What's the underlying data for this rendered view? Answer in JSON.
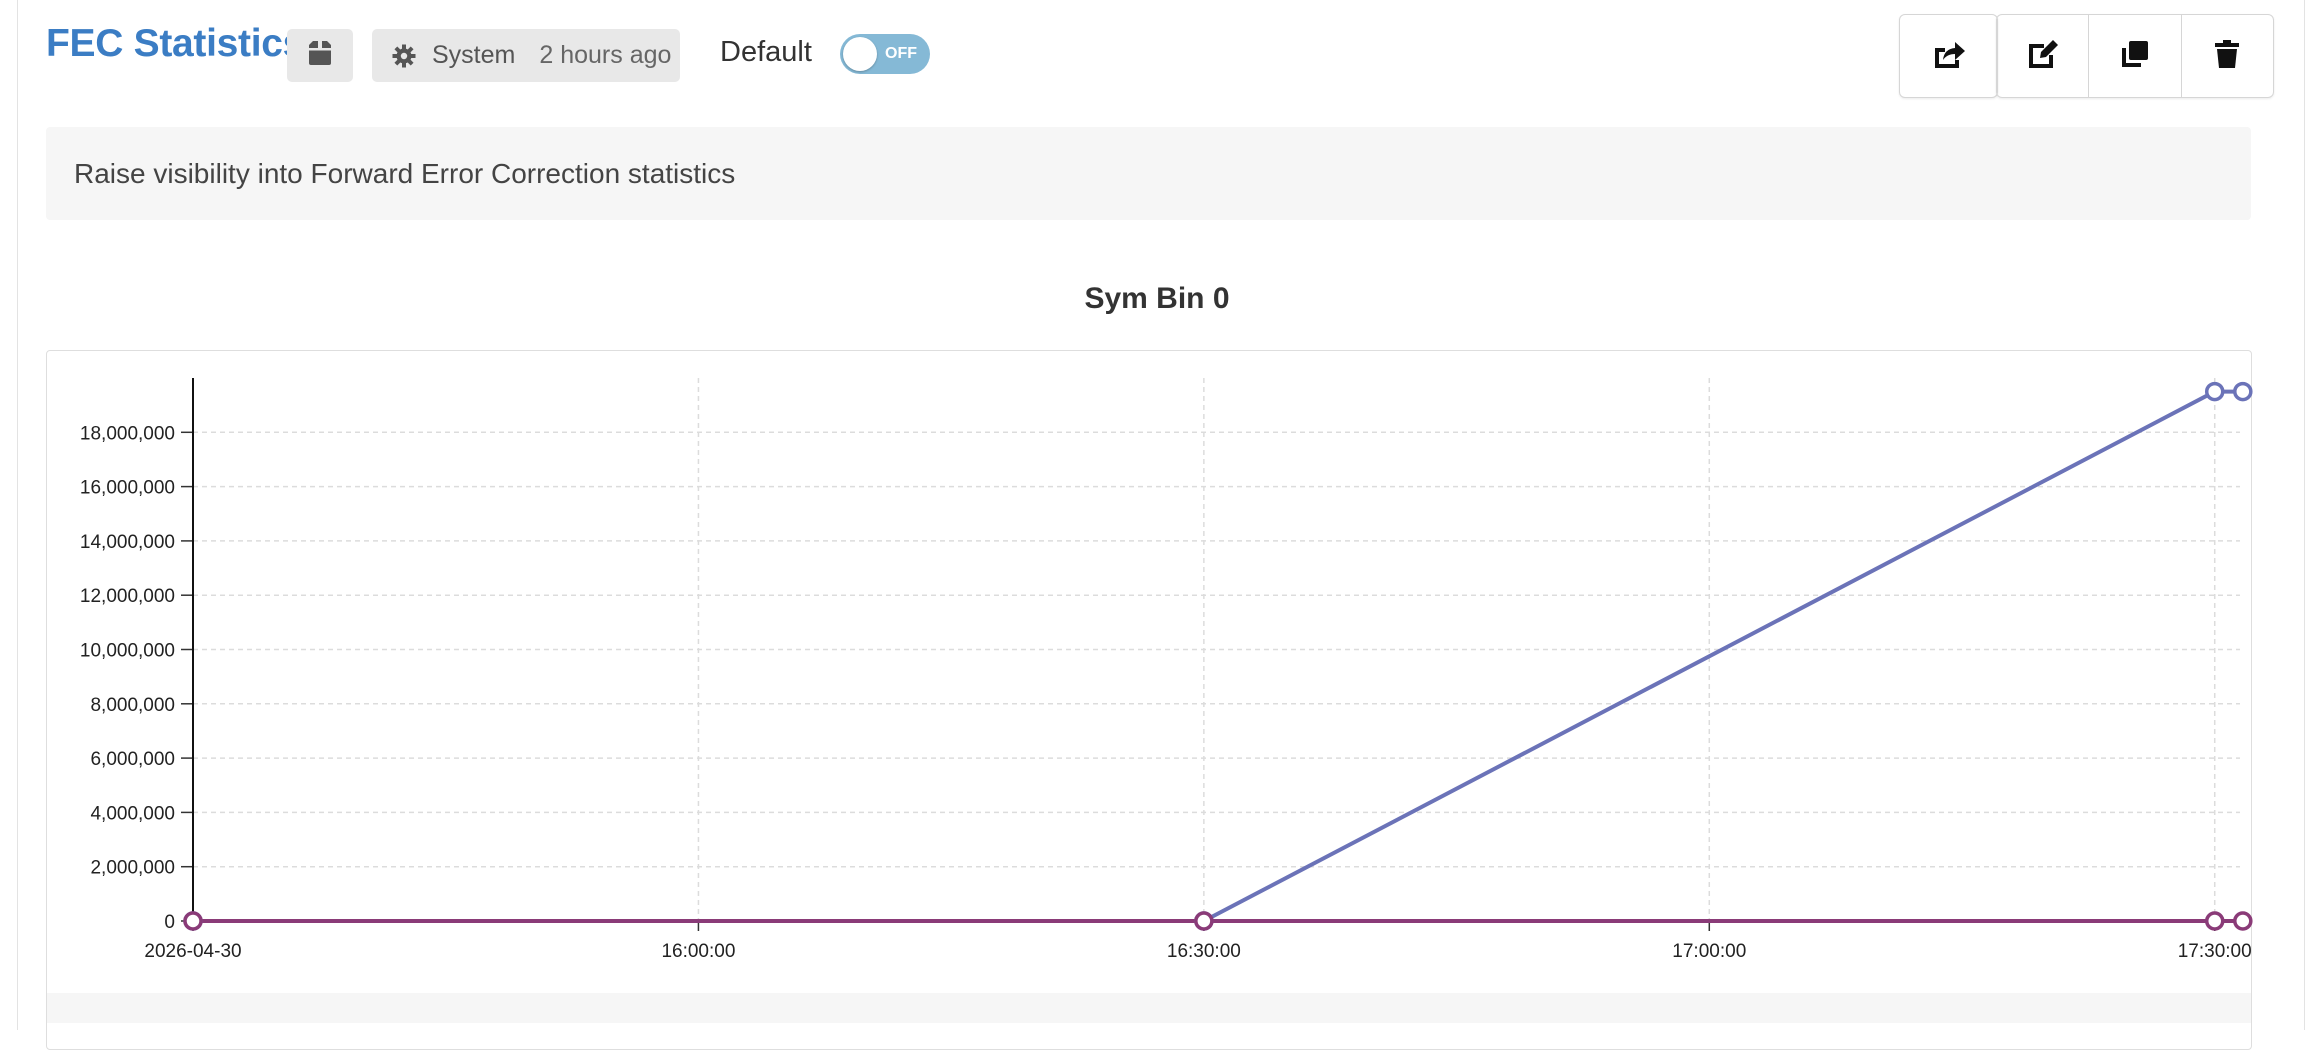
{
  "header": {
    "title": "FEC Statistics",
    "author": "System",
    "updated": "2 hours ago",
    "default_label": "Default",
    "toggle_text": "OFF",
    "toggle_on": false
  },
  "icons": {
    "package": "box-icon",
    "author": "gear-icon",
    "share": "share-icon",
    "edit": "edit-icon",
    "duplicate": "copy-icon",
    "delete": "trash-icon"
  },
  "description": "Raise visibility into Forward Error Correction statistics",
  "colors": {
    "title": "#3b7dc4",
    "toggle_off": "#85b9d6",
    "series_1": "#6b73b8",
    "series_2": "#8a3b78"
  },
  "chart_data": {
    "type": "line",
    "title": "Sym Bin 0",
    "xlabel": "",
    "ylabel": "",
    "x_ticks": [
      "2026-04-30",
      "16:00:00",
      "16:30:00",
      "17:00:00",
      "17:30:00"
    ],
    "y_ticks": [
      "0",
      "2,000,000",
      "4,000,000",
      "6,000,000",
      "8,000,000",
      "10,000,000",
      "12,000,000",
      "14,000,000",
      "16,000,000",
      "18,000,000"
    ],
    "x_range": [
      "2026-04-30 15:30:00",
      "2026-04-30 17:31:30"
    ],
    "ylim": [
      0,
      20000000
    ],
    "grid": true,
    "legend": "none",
    "series": [
      {
        "points": [
          {
            "x": "2026-04-30 15:30:00",
            "y": 0
          },
          {
            "x": "2026-04-30 16:30:00",
            "y": 0
          },
          {
            "x": "2026-04-30 17:30:00",
            "y": 19500000
          },
          {
            "x": "2026-04-30 17:31:40",
            "y": 19500000
          }
        ]
      },
      {
        "points": [
          {
            "x": "2026-04-30 15:30:00",
            "y": 0
          },
          {
            "x": "2026-04-30 16:30:00",
            "y": 0
          },
          {
            "x": "2026-04-30 17:30:00",
            "y": 0
          },
          {
            "x": "2026-04-30 17:31:40",
            "y": 0
          }
        ]
      }
    ]
  }
}
